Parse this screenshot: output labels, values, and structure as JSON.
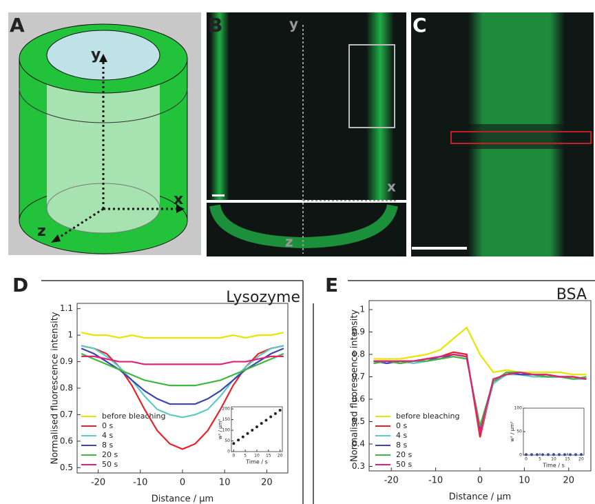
{
  "panels": {
    "A": {
      "label": "A",
      "axes": [
        "y",
        "x",
        "z"
      ]
    },
    "B": {
      "label": "B",
      "axes": [
        "y",
        "x",
        "z"
      ]
    },
    "C": {
      "label": "C"
    }
  },
  "chart_data": [
    {
      "type": "line",
      "panel": "D",
      "title": "Lysozyme",
      "x_label": "Distance / µm",
      "y_label": "Normalised fluorescence intensity",
      "x": [
        -24,
        -21,
        -18,
        -15,
        -12,
        -9,
        -6,
        -3,
        0,
        3,
        6,
        9,
        12,
        15,
        18,
        21,
        24
      ],
      "xlim": [
        -25,
        25
      ],
      "xticks": [
        -20,
        -10,
        0,
        10,
        20
      ],
      "ylim": [
        0.48,
        1.12
      ],
      "yticks": [
        0.5,
        0.6,
        0.7,
        0.8,
        0.9,
        1.0,
        1.1
      ],
      "series": [
        {
          "name": "before bleaching",
          "color": "#e6e600",
          "values": [
            1.01,
            1.0,
            1.0,
            0.99,
            1.0,
            0.99,
            0.99,
            0.99,
            0.99,
            0.99,
            0.99,
            0.99,
            1.0,
            0.99,
            1.0,
            1.0,
            1.01
          ]
        },
        {
          "name": "0 s",
          "color": "#e8202a",
          "values": [
            0.96,
            0.95,
            0.93,
            0.88,
            0.81,
            0.72,
            0.64,
            0.59,
            0.57,
            0.59,
            0.64,
            0.72,
            0.81,
            0.88,
            0.93,
            0.95,
            0.96
          ]
        },
        {
          "name": "4 s",
          "color": "#5cc8c8",
          "values": [
            0.96,
            0.95,
            0.92,
            0.88,
            0.83,
            0.77,
            0.72,
            0.7,
            0.69,
            0.7,
            0.72,
            0.77,
            0.83,
            0.88,
            0.92,
            0.95,
            0.96
          ]
        },
        {
          "name": "8 s",
          "color": "#3a45b0",
          "values": [
            0.95,
            0.93,
            0.9,
            0.87,
            0.83,
            0.79,
            0.76,
            0.74,
            0.74,
            0.74,
            0.76,
            0.79,
            0.83,
            0.87,
            0.9,
            0.93,
            0.95
          ]
        },
        {
          "name": "20 s",
          "color": "#3cb83c",
          "values": [
            0.93,
            0.91,
            0.89,
            0.87,
            0.85,
            0.83,
            0.82,
            0.81,
            0.81,
            0.81,
            0.82,
            0.83,
            0.85,
            0.87,
            0.89,
            0.91,
            0.93
          ]
        },
        {
          "name": "50 s",
          "color": "#e0207a",
          "values": [
            0.92,
            0.92,
            0.91,
            0.9,
            0.9,
            0.89,
            0.89,
            0.89,
            0.89,
            0.89,
            0.89,
            0.89,
            0.9,
            0.9,
            0.91,
            0.92,
            0.92
          ]
        }
      ],
      "inset": {
        "x_label": "Time / s",
        "y_label": "w² / µm²",
        "color": "#222222",
        "x": [
          0,
          2,
          4,
          6,
          8,
          10,
          12,
          14,
          16,
          18,
          20
        ],
        "values": [
          38,
          54,
          69,
          85,
          100,
          116,
          132,
          147,
          163,
          178,
          194
        ],
        "xlim": [
          -1,
          21
        ],
        "xticks": [
          0,
          5,
          10,
          15,
          20
        ],
        "ylim": [
          0,
          210
        ],
        "yticks": [
          0,
          50,
          100,
          150,
          200
        ]
      }
    },
    {
      "type": "line",
      "panel": "E",
      "title": "BSA",
      "x_label": "Distance / µm",
      "y_label": "Normalised fluorescence intensity",
      "x": [
        -24,
        -21,
        -18,
        -15,
        -12,
        -9,
        -6,
        -3,
        0,
        3,
        6,
        9,
        12,
        15,
        18,
        21,
        24
      ],
      "xlim": [
        -25,
        25
      ],
      "xticks": [
        -20,
        -10,
        0,
        10,
        20
      ],
      "ylim": [
        0.28,
        1.04
      ],
      "yticks": [
        0.3,
        0.4,
        0.5,
        0.6,
        0.7,
        0.8,
        0.9,
        1.0
      ],
      "series": [
        {
          "name": "before bleaching",
          "color": "#e6e600",
          "values": [
            0.78,
            0.78,
            0.78,
            0.79,
            0.8,
            0.82,
            0.87,
            0.92,
            0.8,
            0.72,
            0.73,
            0.72,
            0.72,
            0.72,
            0.72,
            0.71,
            0.71
          ]
        },
        {
          "name": "0 s",
          "color": "#e8202a",
          "values": [
            0.77,
            0.77,
            0.76,
            0.77,
            0.78,
            0.79,
            0.81,
            0.8,
            0.43,
            0.68,
            0.71,
            0.72,
            0.71,
            0.71,
            0.7,
            0.7,
            0.69
          ]
        },
        {
          "name": "4 s",
          "color": "#5cc8c8",
          "values": [
            0.76,
            0.77,
            0.77,
            0.76,
            0.77,
            0.78,
            0.8,
            0.79,
            0.45,
            0.67,
            0.71,
            0.71,
            0.7,
            0.7,
            0.7,
            0.69,
            0.69
          ]
        },
        {
          "name": "8 s",
          "color": "#3a45b0",
          "values": [
            0.77,
            0.76,
            0.77,
            0.77,
            0.78,
            0.78,
            0.8,
            0.79,
            0.46,
            0.68,
            0.72,
            0.71,
            0.71,
            0.7,
            0.7,
            0.7,
            0.69
          ]
        },
        {
          "name": "20 s",
          "color": "#3cb83c",
          "values": [
            0.76,
            0.77,
            0.76,
            0.77,
            0.77,
            0.78,
            0.79,
            0.78,
            0.48,
            0.68,
            0.72,
            0.72,
            0.71,
            0.7,
            0.7,
            0.69,
            0.7
          ]
        },
        {
          "name": "50 s",
          "color": "#e0207a",
          "values": [
            0.77,
            0.77,
            0.77,
            0.77,
            0.78,
            0.79,
            0.8,
            0.79,
            0.45,
            0.69,
            0.71,
            0.72,
            0.71,
            0.71,
            0.7,
            0.7,
            0.69
          ]
        }
      ],
      "inset": {
        "x_label": "Time / s",
        "y_label": "w² / µm²",
        "color": "#3a45b0",
        "x": [
          0,
          2,
          4,
          6,
          8,
          10,
          12,
          14,
          16,
          18,
          20
        ],
        "values": [
          1,
          1,
          1,
          1,
          1,
          1,
          1,
          1,
          1,
          1,
          1
        ],
        "xlim": [
          -1,
          21
        ],
        "xticks": [
          0,
          5,
          10,
          15,
          20
        ],
        "ylim": [
          0,
          100
        ],
        "yticks": [
          0,
          50,
          100
        ]
      }
    }
  ]
}
